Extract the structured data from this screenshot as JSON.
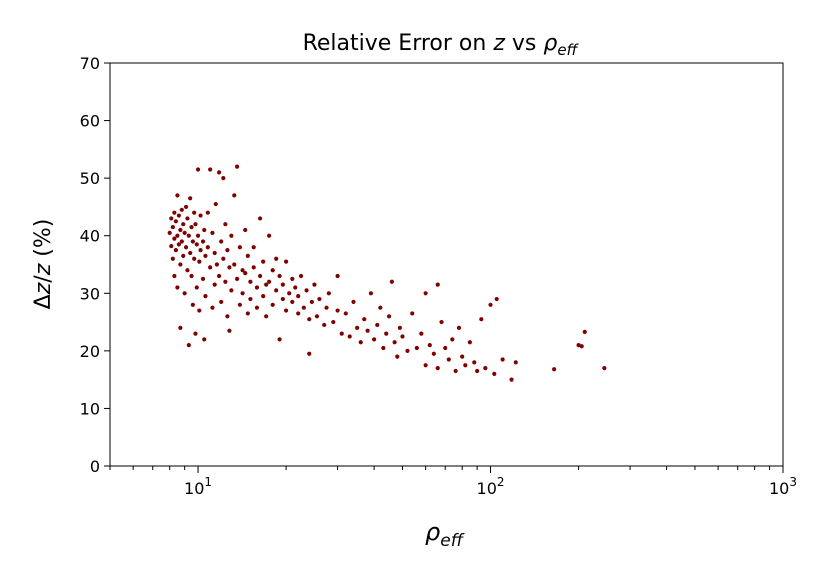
{
  "chart_data": {
    "type": "scatter",
    "title": {
      "main": "Relative  Error on ",
      "var": "z",
      "vs": " vs ",
      "rho": "ρ",
      "sub": "eff"
    },
    "xlabel": {
      "rho": "ρ",
      "sub": "eff"
    },
    "ylabel": {
      "delta": "Δ",
      "z1": "z",
      "slash": "/",
      "z2": "z",
      "pct": "  (%)"
    },
    "x_scale": "log",
    "xlim": [
      5,
      1000
    ],
    "ylim": [
      0,
      70
    ],
    "y_ticks": [
      0,
      10,
      20,
      30,
      40,
      50,
      60,
      70
    ],
    "x_major_ticks": [
      {
        "value": 10,
        "base": "10",
        "exp": "1"
      },
      {
        "value": 100,
        "base": "10",
        "exp": "2"
      },
      {
        "value": 1000,
        "base": "10",
        "exp": "3"
      }
    ],
    "marker_color": "#800000",
    "points": [
      [
        8.0,
        40.5
      ],
      [
        8.1,
        43.0
      ],
      [
        8.1,
        38.2
      ],
      [
        8.2,
        41.5
      ],
      [
        8.2,
        36.0
      ],
      [
        8.3,
        44.0
      ],
      [
        8.3,
        39.5
      ],
      [
        8.3,
        33.0
      ],
      [
        8.4,
        42.5
      ],
      [
        8.4,
        37.5
      ],
      [
        8.5,
        47.0
      ],
      [
        8.5,
        40.0
      ],
      [
        8.5,
        31.0
      ],
      [
        8.6,
        43.5
      ],
      [
        8.6,
        38.5
      ],
      [
        8.7,
        41.0
      ],
      [
        8.7,
        35.0
      ],
      [
        8.7,
        24.0
      ],
      [
        8.8,
        44.5
      ],
      [
        8.8,
        39.0
      ],
      [
        8.9,
        42.0
      ],
      [
        8.9,
        36.5
      ],
      [
        9.0,
        40.5
      ],
      [
        9.0,
        30.0
      ],
      [
        9.1,
        45.0
      ],
      [
        9.1,
        38.0
      ],
      [
        9.2,
        43.0
      ],
      [
        9.2,
        34.0
      ],
      [
        9.3,
        21.0
      ],
      [
        9.3,
        40.0
      ],
      [
        9.4,
        46.5
      ],
      [
        9.4,
        37.0
      ],
      [
        9.5,
        41.5
      ],
      [
        9.5,
        33.0
      ],
      [
        9.6,
        39.0
      ],
      [
        9.6,
        28.0
      ],
      [
        9.7,
        44.0
      ],
      [
        9.7,
        36.0
      ],
      [
        9.8,
        42.0
      ],
      [
        9.8,
        23.0
      ],
      [
        9.9,
        38.5
      ],
      [
        9.9,
        31.0
      ],
      [
        10.0,
        51.5
      ],
      [
        10.0,
        40.0
      ],
      [
        10.1,
        35.5
      ],
      [
        10.1,
        27.0
      ],
      [
        10.2,
        43.5
      ],
      [
        10.2,
        37.5
      ],
      [
        10.4,
        39.0
      ],
      [
        10.4,
        32.5
      ],
      [
        10.5,
        41.0
      ],
      [
        10.5,
        22.0
      ],
      [
        10.6,
        36.5
      ],
      [
        10.6,
        29.5
      ],
      [
        10.8,
        44.0
      ],
      [
        10.8,
        38.0
      ],
      [
        11.0,
        51.5
      ],
      [
        11.0,
        34.5
      ],
      [
        11.2,
        40.5
      ],
      [
        11.2,
        27.5
      ],
      [
        11.4,
        37.0
      ],
      [
        11.4,
        31.5
      ],
      [
        11.5,
        45.5
      ],
      [
        11.6,
        35.0
      ],
      [
        11.8,
        51.0
      ],
      [
        11.8,
        33.0
      ],
      [
        12.0,
        39.0
      ],
      [
        12.0,
        28.5
      ],
      [
        12.2,
        50.0
      ],
      [
        12.2,
        36.0
      ],
      [
        12.4,
        42.0
      ],
      [
        12.4,
        32.0
      ],
      [
        12.6,
        37.5
      ],
      [
        12.6,
        26.0
      ],
      [
        12.8,
        34.5
      ],
      [
        12.8,
        23.5
      ],
      [
        13.0,
        40.0
      ],
      [
        13.0,
        30.5
      ],
      [
        13.3,
        47.0
      ],
      [
        13.3,
        35.0
      ],
      [
        13.6,
        52.0
      ],
      [
        13.6,
        32.5
      ],
      [
        13.9,
        38.0
      ],
      [
        13.9,
        28.0
      ],
      [
        14.2,
        34.0
      ],
      [
        14.2,
        30.0
      ],
      [
        14.5,
        41.0
      ],
      [
        14.5,
        33.5
      ],
      [
        14.8,
        36.5
      ],
      [
        14.8,
        26.5
      ],
      [
        15.1,
        32.0
      ],
      [
        15.1,
        29.0
      ],
      [
        15.5,
        38.0
      ],
      [
        15.5,
        34.5
      ],
      [
        15.9,
        31.0
      ],
      [
        15.9,
        27.5
      ],
      [
        16.3,
        43.0
      ],
      [
        16.3,
        33.0
      ],
      [
        16.7,
        35.5
      ],
      [
        16.7,
        29.5
      ],
      [
        17.1,
        31.5
      ],
      [
        17.1,
        26.0
      ],
      [
        17.5,
        40.0
      ],
      [
        17.5,
        32.0
      ],
      [
        18.0,
        34.0
      ],
      [
        18.0,
        28.0
      ],
      [
        18.5,
        30.5
      ],
      [
        18.5,
        36.0
      ],
      [
        19.0,
        33.0
      ],
      [
        19.0,
        22.0
      ],
      [
        19.5,
        29.0
      ],
      [
        19.5,
        31.5
      ],
      [
        20.0,
        35.5
      ],
      [
        20.0,
        27.0
      ],
      [
        20.5,
        30.0
      ],
      [
        21.0,
        32.5
      ],
      [
        21.0,
        28.5
      ],
      [
        21.5,
        31.0
      ],
      [
        22.0,
        26.5
      ],
      [
        22.0,
        29.5
      ],
      [
        22.5,
        33.0
      ],
      [
        23.0,
        27.5
      ],
      [
        23.5,
        30.5
      ],
      [
        24.0,
        25.5
      ],
      [
        24.0,
        19.5
      ],
      [
        24.5,
        28.5
      ],
      [
        25.0,
        31.5
      ],
      [
        25.5,
        26.0
      ],
      [
        26.0,
        29.0
      ],
      [
        27.0,
        24.5
      ],
      [
        27.5,
        27.5
      ],
      [
        28.0,
        30.0
      ],
      [
        29.0,
        25.0
      ],
      [
        30.0,
        33.0
      ],
      [
        30.0,
        27.0
      ],
      [
        31.0,
        23.0
      ],
      [
        32.0,
        26.5
      ],
      [
        33.0,
        22.5
      ],
      [
        34.0,
        28.5
      ],
      [
        35.0,
        24.0
      ],
      [
        36.0,
        21.5
      ],
      [
        37.0,
        25.5
      ],
      [
        38.0,
        23.5
      ],
      [
        39.0,
        30.0
      ],
      [
        40.0,
        22.0
      ],
      [
        41.0,
        24.5
      ],
      [
        42.0,
        27.5
      ],
      [
        43.0,
        20.5
      ],
      [
        44.0,
        23.0
      ],
      [
        45.0,
        26.0
      ],
      [
        46.0,
        32.0
      ],
      [
        47.0,
        21.5
      ],
      [
        48.0,
        19.0
      ],
      [
        49.0,
        24.0
      ],
      [
        50.0,
        22.5
      ],
      [
        52.0,
        20.0
      ],
      [
        54.0,
        26.5
      ],
      [
        56.0,
        20.5
      ],
      [
        58.0,
        23.0
      ],
      [
        60.0,
        30.0
      ],
      [
        60.0,
        17.5
      ],
      [
        62.0,
        21.0
      ],
      [
        64.0,
        19.5
      ],
      [
        66.0,
        31.5
      ],
      [
        66.0,
        17.0
      ],
      [
        68.0,
        25.0
      ],
      [
        70.0,
        20.5
      ],
      [
        72.0,
        18.5
      ],
      [
        74.0,
        22.0
      ],
      [
        76.0,
        16.5
      ],
      [
        78.0,
        24.0
      ],
      [
        80.0,
        19.0
      ],
      [
        82.0,
        17.5
      ],
      [
        85.0,
        21.5
      ],
      [
        88.0,
        18.0
      ],
      [
        90.0,
        16.5
      ],
      [
        93.0,
        25.5
      ],
      [
        96.0,
        17.0
      ],
      [
        100.0,
        28.0
      ],
      [
        103.0,
        16.0
      ],
      [
        105.0,
        29.0
      ],
      [
        110.0,
        18.5
      ],
      [
        118.0,
        15.0
      ],
      [
        122.0,
        18.0
      ],
      [
        165.0,
        16.8
      ],
      [
        200.0,
        21.0
      ],
      [
        205.0,
        20.8
      ],
      [
        210.0,
        23.3
      ],
      [
        245.0,
        17.0
      ]
    ]
  }
}
